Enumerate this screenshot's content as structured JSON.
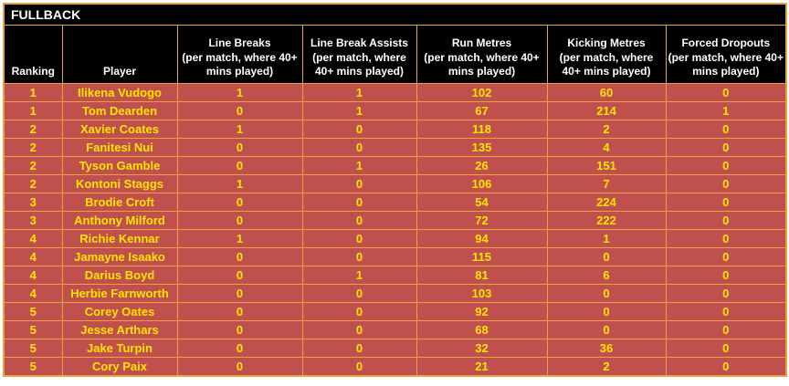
{
  "title": "FULLBACK",
  "colors": {
    "border": "#E8A33D",
    "header_bg": "#000000",
    "header_text": "#FFFFFF",
    "row_bg": "#C0504D",
    "row_text": "#FFE600",
    "page_bg": "#FFFFFF"
  },
  "table": {
    "columns": [
      {
        "key": "ranking",
        "label": "Ranking",
        "sub": ""
      },
      {
        "key": "player",
        "label": "Player",
        "sub": ""
      },
      {
        "key": "line-breaks",
        "label": "Line Breaks",
        "sub": "(per match, where 40+ mins played)"
      },
      {
        "key": "line-break-assists",
        "label": "Line Break Assists",
        "sub": "(per match, where 40+ mins played)"
      },
      {
        "key": "run-metres",
        "label": "Run Metres",
        "sub": "(per match, where 40+ mins played)"
      },
      {
        "key": "kicking-metres",
        "label": "Kicking Metres",
        "sub": "(per match, where 40+ mins played)"
      },
      {
        "key": "forced-dropouts",
        "label": "Forced Dropouts",
        "sub": "(per match, where 40+ mins played)"
      }
    ],
    "rows": [
      [
        "1",
        "Ilikena Vudogo",
        "1",
        "1",
        "102",
        "60",
        "0"
      ],
      [
        "1",
        "Tom Dearden",
        "0",
        "1",
        "67",
        "214",
        "1"
      ],
      [
        "2",
        "Xavier Coates",
        "1",
        "0",
        "118",
        "2",
        "0"
      ],
      [
        "2",
        "Fanitesi Nui",
        "0",
        "0",
        "135",
        "4",
        "0"
      ],
      [
        "2",
        "Tyson Gamble",
        "0",
        "1",
        "26",
        "151",
        "0"
      ],
      [
        "2",
        "Kontoni Staggs",
        "1",
        "0",
        "106",
        "7",
        "0"
      ],
      [
        "3",
        "Brodie Croft",
        "0",
        "0",
        "54",
        "224",
        "0"
      ],
      [
        "3",
        "Anthony Milford",
        "0",
        "0",
        "72",
        "222",
        "0"
      ],
      [
        "4",
        "Richie Kennar",
        "1",
        "0",
        "94",
        "1",
        "0"
      ],
      [
        "4",
        "Jamayne Isaako",
        "0",
        "0",
        "115",
        "0",
        "0"
      ],
      [
        "4",
        "Darius Boyd",
        "0",
        "1",
        "81",
        "6",
        "0"
      ],
      [
        "4",
        "Herbie Farnworth",
        "0",
        "0",
        "103",
        "0",
        "0"
      ],
      [
        "5",
        "Corey Oates",
        "0",
        "0",
        "92",
        "0",
        "0"
      ],
      [
        "5",
        "Jesse Arthars",
        "0",
        "0",
        "68",
        "0",
        "0"
      ],
      [
        "5",
        "Jake Turpin",
        "0",
        "0",
        "32",
        "36",
        "0"
      ],
      [
        "5",
        "Cory Paix",
        "0",
        "0",
        "21",
        "2",
        "0"
      ]
    ]
  }
}
